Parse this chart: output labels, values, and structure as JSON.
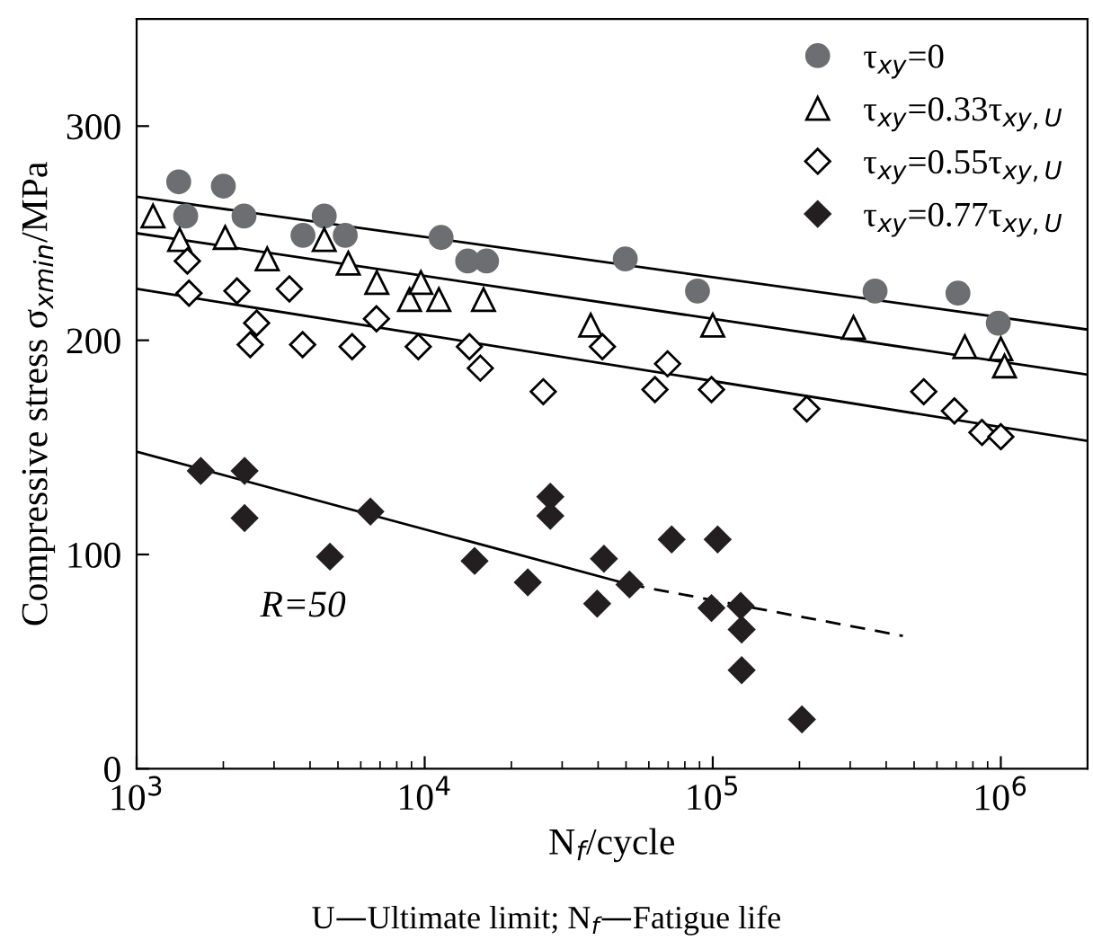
{
  "chart_data": {
    "type": "scatter",
    "xlabel": "N$_{f}$/cycle",
    "ylabel": "Compressive stress σ$_{xmin}$/MPa",
    "log": "x",
    "xlim": [
      1000,
      2000000
    ],
    "ylim": [
      0,
      350
    ],
    "xticks": [
      {
        "value": 1000,
        "label": "10$^{3}$"
      },
      {
        "value": 10000,
        "label": "10$^{4}$"
      },
      {
        "value": 100000,
        "label": "10$^{5}$"
      },
      {
        "value": 1000000,
        "label": "10$^{6}$"
      }
    ],
    "yticks": [
      0,
      100,
      200,
      300
    ],
    "grid": false,
    "legend": "top right",
    "annotations": [
      "R=50",
      "U—Ultimate limit; N$_{f}$—Fatigue life"
    ],
    "series": [
      {
        "name": "τ$_{xy}$=0",
        "marker": "circle",
        "color": "#6d6e71",
        "x": [
          1400,
          1480,
          2000,
          2360,
          3780,
          4480,
          5300,
          11400,
          14100,
          16400,
          49700,
          88500,
          366000,
          710000,
          980000
        ],
        "values": [
          274,
          258,
          272,
          258,
          249,
          258,
          249,
          248,
          237,
          237,
          238,
          223,
          223,
          222,
          208
        ]
      },
      {
        "name": "τ$_{xy}$=0.33τ$_{xy,U}$",
        "marker": "triangle",
        "color": "#ffffff",
        "x": [
          1140,
          1410,
          2030,
          2840,
          4480,
          5430,
          6820,
          8860,
          9700,
          11200,
          16000,
          37700,
          100000,
          308000,
          750000,
          1000000,
          1030000
        ],
        "values": [
          258,
          247,
          248,
          238,
          247,
          236,
          227,
          219,
          227,
          219,
          219,
          207,
          207,
          206,
          197,
          196,
          188
        ]
      },
      {
        "name": "τ$_{xy}$=0.55τ$_{xy,U}$",
        "marker": "diamond",
        "color": "#ffffff",
        "x": [
          1500,
          1520,
          2230,
          3390,
          2610,
          2480,
          3770,
          5600,
          6800,
          9500,
          14300,
          15600,
          25800,
          41400,
          69700,
          63000,
          99000,
          212000,
          540000,
          690000,
          860000,
          1000000
        ],
        "values": [
          237,
          222,
          223,
          224,
          208,
          198,
          198,
          197,
          210,
          197,
          197,
          187,
          176,
          197,
          189,
          177,
          177,
          168,
          176,
          167,
          157,
          155
        ]
      },
      {
        "name": "τ$_{xy}$=0.77τ$_{xy,U}$",
        "marker": "diamond",
        "color": "#231f20",
        "x": [
          1670,
          2370,
          2370,
          4690,
          6480,
          14900,
          22800,
          27300,
          27300,
          39700,
          41900,
          51400,
          72000,
          104000,
          99000,
          125000,
          126000,
          126000,
          204000
        ],
        "values": [
          139,
          139,
          117,
          99,
          120,
          97,
          87,
          127,
          118,
          77,
          98,
          86,
          107,
          107,
          75,
          76,
          65,
          46,
          23
        ]
      },
      {
        "type": "line",
        "marker": "none",
        "line_style": "solid",
        "color": "#000000",
        "x": [
          1000,
          2000000
        ],
        "values": [
          267,
          205
        ]
      },
      {
        "type": "line",
        "marker": "none",
        "line_style": "solid",
        "color": "#000000",
        "x": [
          1000,
          2000000
        ],
        "values": [
          250,
          184
        ]
      },
      {
        "type": "line",
        "marker": "none",
        "line_style": "solid",
        "color": "#000000",
        "x": [
          1000,
          2000000
        ],
        "values": [
          224,
          153
        ]
      },
      {
        "type": "line",
        "marker": "none",
        "line_style": "solid",
        "color": "#000000",
        "x": [
          1000,
          51400
        ],
        "values": [
          148,
          86
        ]
      },
      {
        "type": "line",
        "marker": "none",
        "line_style": "dashed",
        "color": "#000000",
        "x": [
          51400,
          457000
        ],
        "values": [
          86,
          62
        ]
      }
    ]
  }
}
